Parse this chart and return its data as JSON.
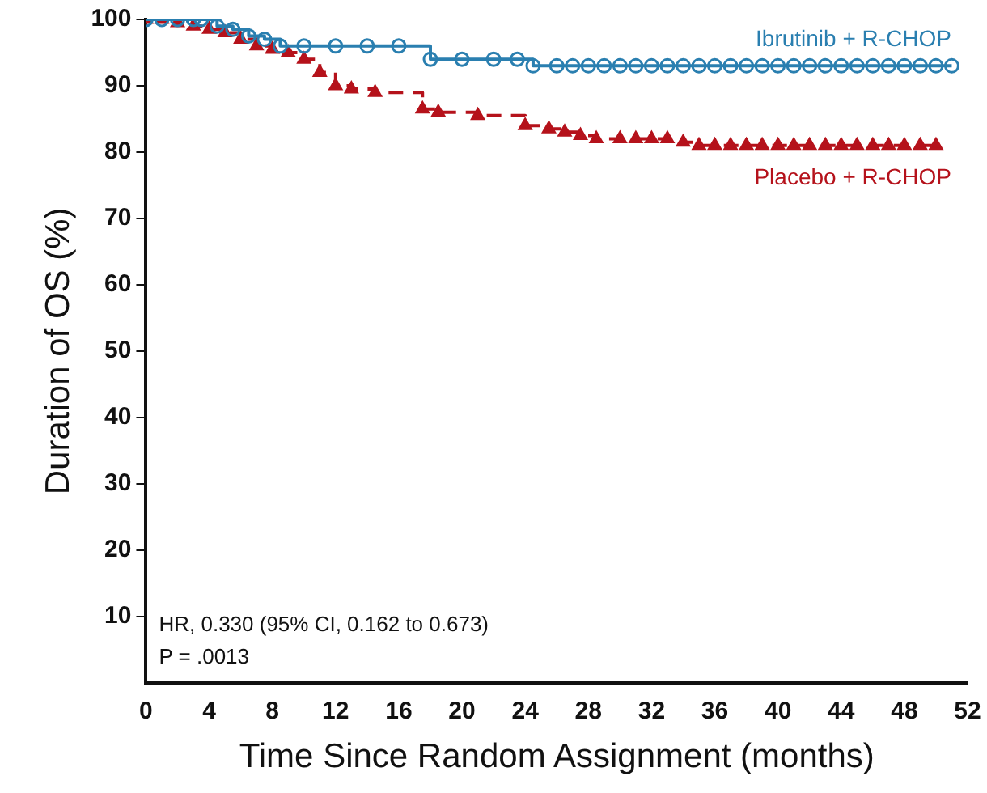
{
  "chart_data": {
    "type": "step",
    "xlabel": "Time Since Random Assignment (months)",
    "ylabel": "Duration of OS (%)",
    "xlim": [
      0,
      52
    ],
    "xticks": [
      0,
      4,
      8,
      12,
      16,
      20,
      24,
      28,
      32,
      36,
      40,
      44,
      48,
      52
    ],
    "ylim": [
      0,
      100
    ],
    "yticks": [
      10,
      20,
      30,
      40,
      50,
      60,
      70,
      80,
      90,
      100
    ],
    "grid": false,
    "legend": false,
    "series": [
      {
        "name": "Ibrutinib + R-CHOP",
        "color": "#2a7fb0",
        "marker": "circle",
        "line_style": "solid",
        "x": [
          0,
          1,
          2,
          3,
          3.5,
          4.5,
          5.5,
          6.5,
          7.5,
          8.5,
          10,
          12,
          14,
          16,
          18,
          20,
          22,
          23.5,
          24.5,
          26,
          27,
          28,
          29,
          30,
          31,
          32,
          33,
          34,
          35,
          36,
          37,
          38,
          39,
          40,
          41,
          42,
          43,
          44,
          45,
          46,
          47,
          48,
          49,
          50,
          51
        ],
        "values": [
          100,
          100,
          100,
          100,
          100,
          99,
          98.5,
          97.5,
          97,
          96,
          96,
          96,
          96,
          96,
          94,
          94,
          94,
          94,
          93,
          93,
          93,
          93,
          93,
          93,
          93,
          93,
          93,
          93,
          93,
          93,
          93,
          93,
          93,
          93,
          93,
          93,
          93,
          93,
          93,
          93,
          93,
          93,
          93,
          93,
          93
        ]
      },
      {
        "name": "Placebo + R-CHOP",
        "color": "#b5121b",
        "marker": "triangle",
        "line_style": "dashed",
        "x": [
          0,
          1,
          2,
          3,
          4,
          5,
          6,
          7,
          8,
          9,
          10,
          11,
          12,
          13,
          14.5,
          17.5,
          18.5,
          21,
          24,
          25.5,
          26.5,
          27.5,
          28.5,
          30,
          31,
          32,
          33,
          34,
          35,
          36,
          37,
          38,
          39,
          40,
          41,
          42,
          43,
          44,
          45,
          46,
          47,
          48,
          49,
          50
        ],
        "values": [
          100,
          100,
          99.5,
          99,
          98.5,
          98,
          97,
          96,
          95.5,
          95,
          94,
          92,
          90,
          89.5,
          89,
          86.5,
          86,
          85.5,
          84,
          83.5,
          83,
          82.5,
          82,
          82,
          82,
          82,
          82,
          81.5,
          81,
          81,
          81,
          81,
          81,
          81,
          81,
          81,
          81,
          81,
          81,
          81,
          81,
          81,
          81,
          81
        ]
      }
    ],
    "annotations": [
      "HR, 0.330 (95% CI, 0.162 to 0.673)",
      "P = .0013"
    ]
  }
}
